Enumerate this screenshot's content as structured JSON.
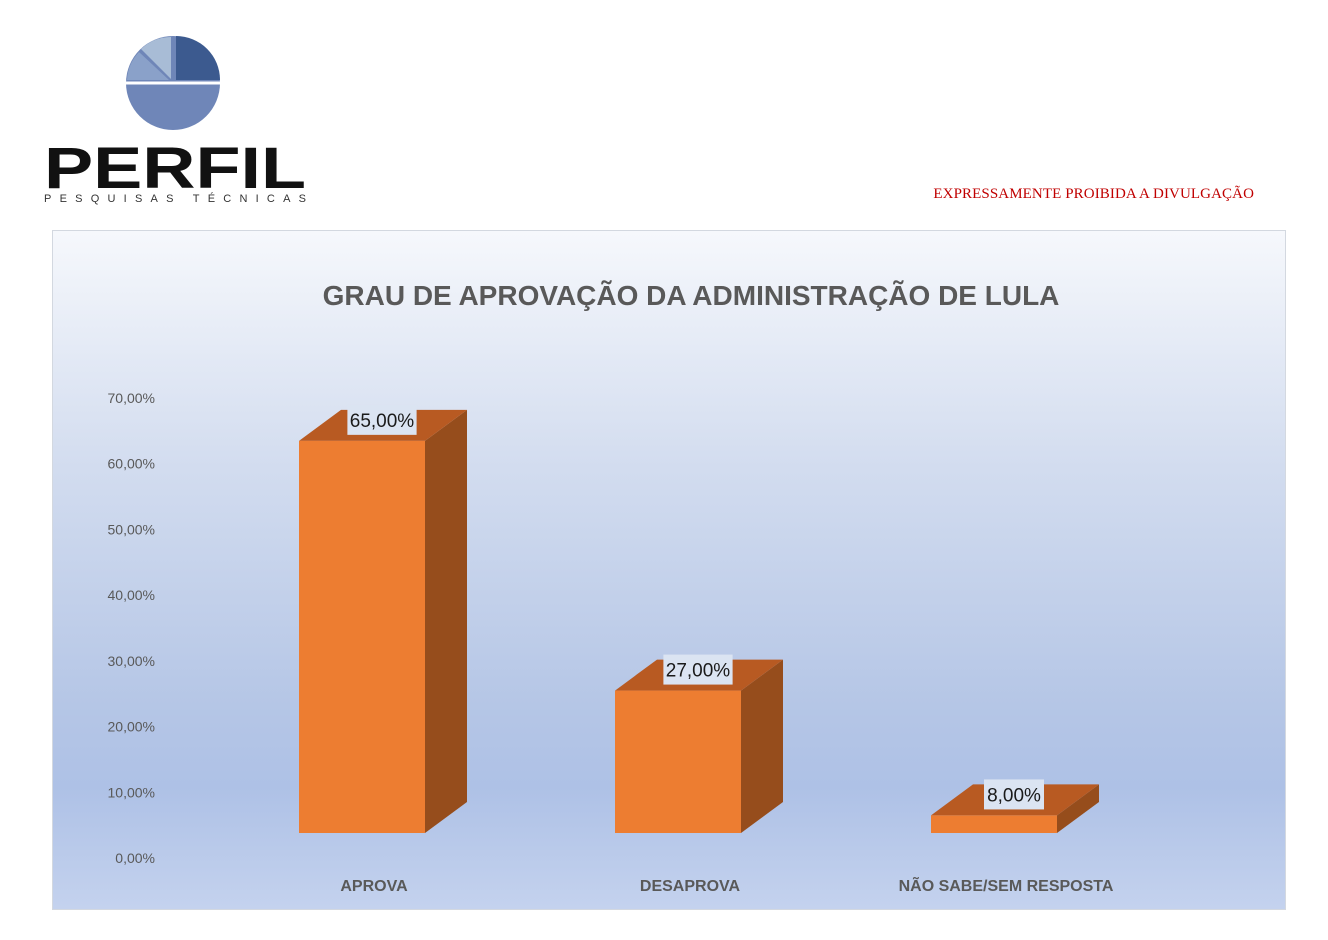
{
  "logo": {
    "brand": "PERFIL",
    "tagline": "PESQUISAS TÉCNICAS",
    "colors": {
      "dark": "#3c5a8f",
      "mid": "#6f86b8",
      "light": "#a8bcd6",
      "text": "#111111"
    }
  },
  "notice": "EXPRESSAMENTE PROIBIDA A DIVULGAÇÃO",
  "chart_data": {
    "type": "bar",
    "style": "3d-column",
    "title": "GRAU DE APROVAÇÃO DA ADMINISTRAÇÃO DE LULA",
    "xlabel": "",
    "ylabel": "",
    "categories": [
      "APROVA",
      "DESAPROVA",
      "NÃO SABE/SEM RESPOSTA"
    ],
    "values": [
      65,
      27,
      8
    ],
    "data_labels": [
      "65,00%",
      "27,00%",
      "8,00%"
    ],
    "ylim": [
      0,
      70
    ],
    "yticks": [
      0,
      10,
      20,
      30,
      40,
      50,
      60,
      70
    ],
    "ytick_labels": [
      "0,00%",
      "10,00%",
      "20,00%",
      "30,00%",
      "40,00%",
      "50,00%",
      "60,00%",
      "70,00%"
    ],
    "grid": false,
    "legend": "none",
    "colors": {
      "front": "#ed7d31",
      "side": "#964d1c",
      "top": "#b85a22",
      "label_bg": "#dbe4f2"
    }
  }
}
